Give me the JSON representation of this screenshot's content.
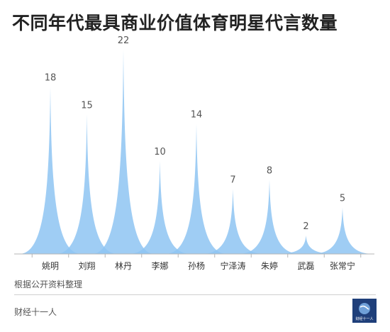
{
  "title": "不同年代最具商业价值体育明星代言数量",
  "source": "根据公开资料整理",
  "brand": "财经十一人",
  "logo_caption": "财经十一人",
  "colors": {
    "peak": "#8ec4f2",
    "axis": "#b5b5b5",
    "label": "#555555"
  },
  "chart_data": {
    "type": "area",
    "title": "不同年代最具商业价值体育明星代言数量",
    "categories": [
      "姚明",
      "刘翔",
      "林丹",
      "李娜",
      "孙杨",
      "宁泽涛",
      "朱婷",
      "武磊",
      "张常宁"
    ],
    "values": [
      18,
      15,
      22,
      10,
      14,
      7,
      8,
      2,
      5
    ],
    "ylim": [
      0,
      22
    ],
    "grid": false,
    "data_labels": true
  }
}
